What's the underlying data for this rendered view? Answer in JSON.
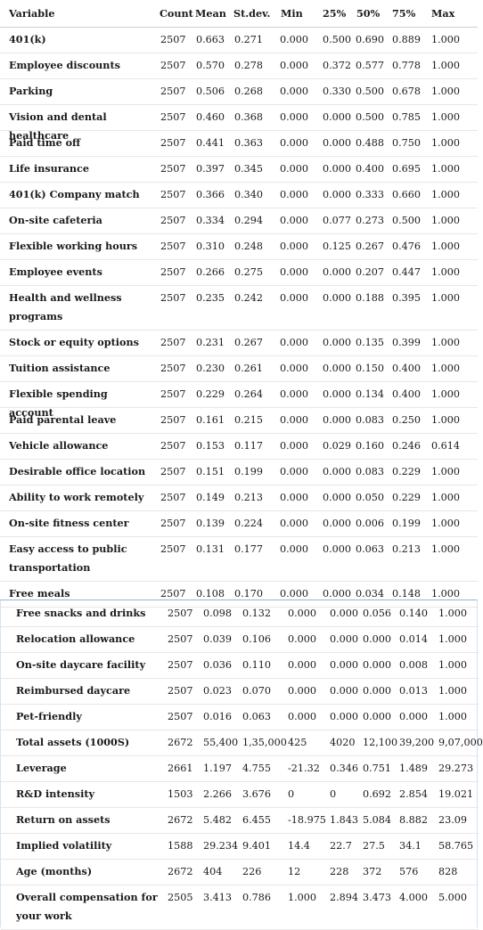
{
  "headers": [
    "Variable",
    "Count",
    "Mean",
    "St.dev.",
    "Min",
    "25%",
    "50%",
    "75%",
    "Max"
  ],
  "rows_top": [
    {
      "name": "401(k)",
      "values": [
        "2507",
        "0.663",
        "0.271",
        "0.000",
        "0.500",
        "0.690",
        "0.889",
        "1.000"
      ]
    },
    {
      "name": "Employee discounts",
      "values": [
        "2507",
        "0.570",
        "0.278",
        "0.000",
        "0.372",
        "0.577",
        "0.778",
        "1.000"
      ]
    },
    {
      "name": "Parking",
      "values": [
        "2507",
        "0.506",
        "0.268",
        "0.000",
        "0.330",
        "0.500",
        "0.678",
        "1.000"
      ]
    },
    {
      "name": "Vision and dental healthcare",
      "values": [
        "2507",
        "0.460",
        "0.368",
        "0.000",
        "0.000",
        "0.500",
        "0.785",
        "1.000"
      ]
    },
    {
      "name": "Paid time off",
      "values": [
        "2507",
        "0.441",
        "0.363",
        "0.000",
        "0.000",
        "0.488",
        "0.750",
        "1.000"
      ]
    },
    {
      "name": "Life insurance",
      "values": [
        "2507",
        "0.397",
        "0.345",
        "0.000",
        "0.000",
        "0.400",
        "0.695",
        "1.000"
      ]
    },
    {
      "name": "401(k) Company match",
      "values": [
        "2507",
        "0.366",
        "0.340",
        "0.000",
        "0.000",
        "0.333",
        "0.660",
        "1.000"
      ]
    },
    {
      "name": "On-site cafeteria",
      "values": [
        "2507",
        "0.334",
        "0.294",
        "0.000",
        "0.077",
        "0.273",
        "0.500",
        "1.000"
      ]
    },
    {
      "name": "Flexible working hours",
      "values": [
        "2507",
        "0.310",
        "0.248",
        "0.000",
        "0.125",
        "0.267",
        "0.476",
        "1.000"
      ]
    },
    {
      "name": "Employee events",
      "values": [
        "2507",
        "0.266",
        "0.275",
        "0.000",
        "0.000",
        "0.207",
        "0.447",
        "1.000"
      ]
    },
    {
      "name": "Health and wellness programs",
      "values": [
        "2507",
        "0.235",
        "0.242",
        "0.000",
        "0.000",
        "0.188",
        "0.395",
        "1.000"
      ]
    },
    {
      "name": "Stock or equity options",
      "values": [
        "2507",
        "0.231",
        "0.267",
        "0.000",
        "0.000",
        "0.135",
        "0.399",
        "1.000"
      ]
    },
    {
      "name": "Tuition assistance",
      "values": [
        "2507",
        "0.230",
        "0.261",
        "0.000",
        "0.000",
        "0.150",
        "0.400",
        "1.000"
      ]
    },
    {
      "name": "Flexible spending account",
      "values": [
        "2507",
        "0.229",
        "0.264",
        "0.000",
        "0.000",
        "0.134",
        "0.400",
        "1.000"
      ]
    },
    {
      "name": "Paid parental leave",
      "values": [
        "2507",
        "0.161",
        "0.215",
        "0.000",
        "0.000",
        "0.083",
        "0.250",
        "1.000"
      ]
    },
    {
      "name": "Vehicle allowance",
      "values": [
        "2507",
        "0.153",
        "0.117",
        "0.000",
        "0.029",
        "0.160",
        "0.246",
        "0.614"
      ]
    },
    {
      "name": "Desirable office location",
      "values": [
        "2507",
        "0.151",
        "0.199",
        "0.000",
        "0.000",
        "0.083",
        "0.229",
        "1.000"
      ]
    },
    {
      "name": "Ability to work remotely",
      "values": [
        "2507",
        "0.149",
        "0.213",
        "0.000",
        "0.000",
        "0.050",
        "0.229",
        "1.000"
      ]
    },
    {
      "name": "On-site fitness center",
      "values": [
        "2507",
        "0.139",
        "0.224",
        "0.000",
        "0.000",
        "0.006",
        "0.199",
        "1.000"
      ]
    },
    {
      "name": "Easy access to public transportation",
      "values": [
        "2507",
        "0.131",
        "0.177",
        "0.000",
        "0.000",
        "0.063",
        "0.213",
        "1.000"
      ]
    },
    {
      "name": "Free meals",
      "values": [
        "2507",
        "0.108",
        "0.170",
        "0.000",
        "0.000",
        "0.034",
        "0.148",
        "1.000"
      ]
    }
  ],
  "rows_bottom": [
    {
      "name": "Free snacks and drinks",
      "values": [
        "2507",
        "0.098",
        "0.132",
        "0.000",
        "0.000",
        "0.056",
        "0.140",
        "1.000"
      ]
    },
    {
      "name": "Relocation allowance",
      "values": [
        "2507",
        "0.039",
        "0.106",
        "0.000",
        "0.000",
        "0.000",
        "0.014",
        "1.000"
      ]
    },
    {
      "name": "On-site daycare facility",
      "values": [
        "2507",
        "0.036",
        "0.110",
        "0.000",
        "0.000",
        "0.000",
        "0.008",
        "1.000"
      ]
    },
    {
      "name": "Reimbursed daycare",
      "values": [
        "2507",
        "0.023",
        "0.070",
        "0.000",
        "0.000",
        "0.000",
        "0.013",
        "1.000"
      ]
    },
    {
      "name": "Pet-friendly",
      "values": [
        "2507",
        "0.016",
        "0.063",
        "0.000",
        "0.000",
        "0.000",
        "0.000",
        "1.000"
      ]
    },
    {
      "name": "Total assets (1000S)",
      "values": [
        "2672",
        "55,400",
        "1,35,000",
        "425",
        "4020",
        "12,100",
        "39,200",
        "9,07,000"
      ]
    },
    {
      "name": "Leverage",
      "values": [
        "2661",
        "1.197",
        "4.755",
        "-21.32",
        "0.346",
        "0.751",
        "1.489",
        "29.273"
      ]
    },
    {
      "name": "R&D intensity",
      "values": [
        "1503",
        "2.266",
        "3.676",
        "0",
        "0",
        "0.692",
        "2.854",
        "19.021"
      ]
    },
    {
      "name": "Return on assets",
      "values": [
        "2672",
        "5.482",
        "6.455",
        "-18.975",
        "1.843",
        "5.084",
        "8.882",
        "23.09"
      ]
    },
    {
      "name": "Implied volatility",
      "values": [
        "1588",
        "29.234",
        "9.401",
        "14.4",
        "22.7",
        "27.5",
        "34.1",
        "58.765"
      ]
    },
    {
      "name": "Age (months)",
      "values": [
        "2672",
        "404",
        "226",
        "12",
        "228",
        "372",
        "576",
        "828"
      ]
    },
    {
      "name": "Overall compensation for your work",
      "values": [
        "2505",
        "3.413",
        "0.786",
        "1.000",
        "2.894",
        "3.473",
        "4.000",
        "5.000"
      ]
    }
  ]
}
